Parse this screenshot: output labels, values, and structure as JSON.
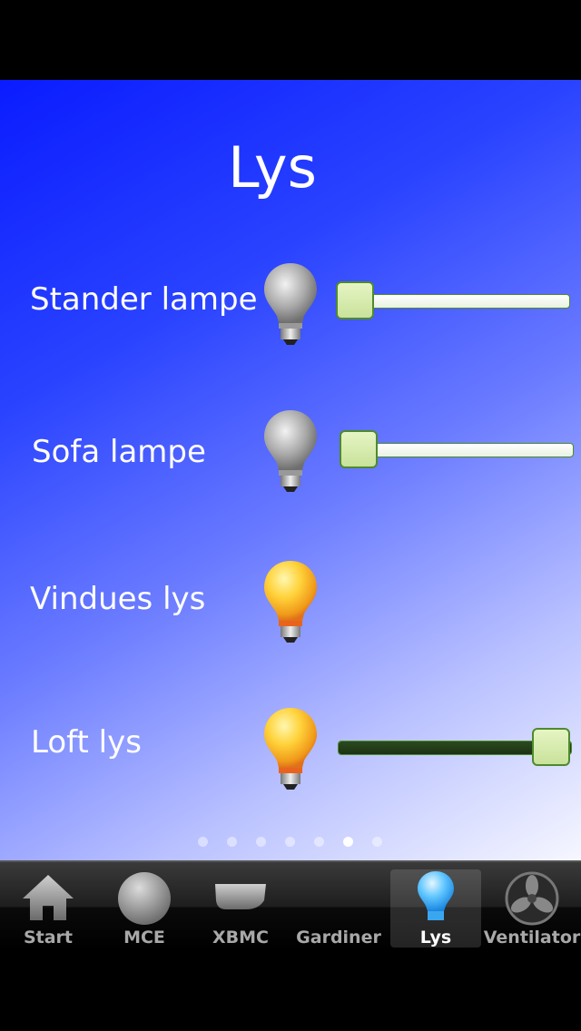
{
  "page": {
    "title": "Lys"
  },
  "lights": [
    {
      "label": "Stander lampe",
      "state": "off",
      "slider": {
        "visible": true,
        "level": 0
      }
    },
    {
      "label": "Sofa lampe",
      "state": "off",
      "slider": {
        "visible": true,
        "level": 0
      }
    },
    {
      "label": "Vindues lys",
      "state": "on",
      "slider": {
        "visible": false
      }
    },
    {
      "label": "Loft lys",
      "state": "on",
      "slider": {
        "visible": true,
        "level": 1
      }
    }
  ],
  "pager": {
    "count": 7,
    "active_index": 5
  },
  "tabs": [
    {
      "label": "Start",
      "icon": "house-icon"
    },
    {
      "label": "MCE",
      "icon": "circle-icon"
    },
    {
      "label": "XBMC",
      "icon": "xbmc-icon"
    },
    {
      "label": "Gardiner",
      "icon": ""
    },
    {
      "label": "Lys",
      "icon": "bulb-icon",
      "selected": true
    },
    {
      "label": "Ventilator",
      "icon": "fan-icon"
    }
  ],
  "colors": {
    "accent": "#1a2bff",
    "slider_thumb": "#d4eba8",
    "slider_border": "#4e8a2e",
    "slider_fill": "#22401a"
  }
}
